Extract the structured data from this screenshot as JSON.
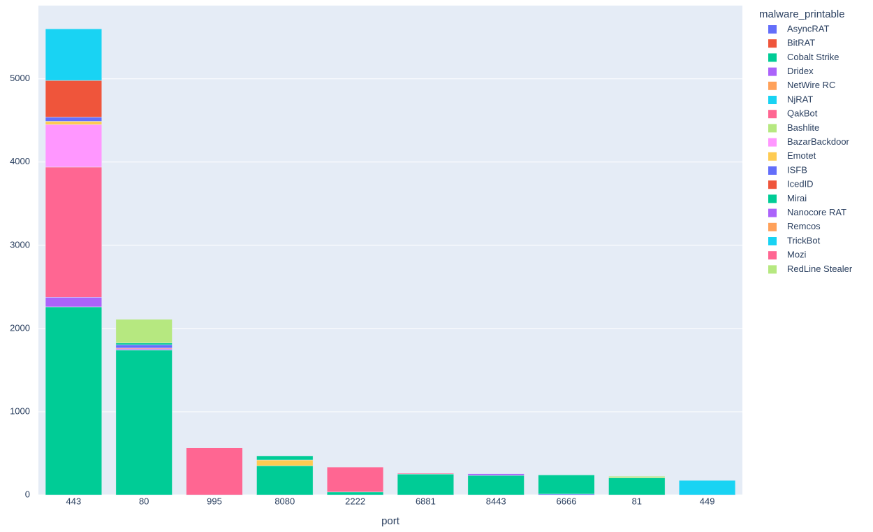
{
  "chart_data": {
    "type": "bar",
    "stacked": true,
    "x_label": "port",
    "legend_title": "malware_printable",
    "categories": [
      "443",
      "80",
      "995",
      "8080",
      "2222",
      "6881",
      "8443",
      "6666",
      "81",
      "449"
    ],
    "ylim": [
      0,
      5880
    ],
    "yticks": [
      0,
      1000,
      2000,
      3000,
      4000,
      5000
    ],
    "grid": true,
    "legend": "right",
    "series": [
      {
        "name": "AsyncRAT",
        "color": "#636efa",
        "values": [
          0,
          0,
          0,
          0,
          0,
          0,
          0,
          10,
          0,
          0
        ]
      },
      {
        "name": "BitRAT",
        "color": "#EF553B",
        "values": [
          0,
          0,
          0,
          0,
          0,
          0,
          0,
          0,
          0,
          0
        ]
      },
      {
        "name": "Cobalt Strike",
        "color": "#00cc96",
        "values": [
          2260,
          1740,
          0,
          350,
          0,
          0,
          235,
          0,
          0,
          0
        ]
      },
      {
        "name": "Dridex",
        "color": "#ab63fa",
        "values": [
          115,
          15,
          0,
          0,
          0,
          0,
          20,
          0,
          0,
          0
        ]
      },
      {
        "name": "NetWire RC",
        "color": "#FFA15A",
        "values": [
          0,
          0,
          0,
          0,
          0,
          0,
          0,
          0,
          0,
          0
        ]
      },
      {
        "name": "NjRAT",
        "color": "#19d3f3",
        "values": [
          0,
          0,
          0,
          0,
          0,
          0,
          0,
          0,
          0,
          175
        ]
      },
      {
        "name": "QakBot",
        "color": "#FF6692",
        "values": [
          1565,
          10,
          565,
          0,
          0,
          0,
          0,
          0,
          0,
          0
        ]
      },
      {
        "name": "Bashlite",
        "color": "#B6E880",
        "values": [
          0,
          0,
          0,
          0,
          0,
          0,
          0,
          0,
          0,
          0
        ]
      },
      {
        "name": "BazarBackdoor",
        "color": "#FF97FF",
        "values": [
          510,
          0,
          0,
          0,
          0,
          0,
          0,
          0,
          0,
          0
        ]
      },
      {
        "name": "Emotet",
        "color": "#FECB52",
        "values": [
          40,
          0,
          0,
          70,
          0,
          0,
          0,
          0,
          0,
          0
        ]
      },
      {
        "name": "ISFB",
        "color": "#636efa",
        "values": [
          50,
          40,
          0,
          0,
          0,
          0,
          0,
          0,
          0,
          0
        ]
      },
      {
        "name": "IcedID",
        "color": "#EF553B",
        "values": [
          440,
          0,
          0,
          0,
          0,
          0,
          0,
          0,
          0,
          0
        ]
      },
      {
        "name": "Mirai",
        "color": "#00cc96",
        "values": [
          0,
          20,
          0,
          50,
          35,
          250,
          0,
          230,
          205,
          0
        ]
      },
      {
        "name": "Nanocore RAT",
        "color": "#ab63fa",
        "values": [
          0,
          0,
          0,
          0,
          0,
          0,
          0,
          0,
          0,
          0
        ]
      },
      {
        "name": "Remcos",
        "color": "#FFA15A",
        "values": [
          0,
          0,
          0,
          0,
          0,
          0,
          0,
          0,
          0,
          0
        ]
      },
      {
        "name": "TrickBot",
        "color": "#19d3f3",
        "values": [
          620,
          0,
          0,
          0,
          0,
          0,
          0,
          0,
          0,
          0
        ]
      },
      {
        "name": "Mozi",
        "color": "#FF6692",
        "values": [
          0,
          0,
          0,
          0,
          300,
          10,
          0,
          0,
          0,
          0
        ]
      },
      {
        "name": "RedLine Stealer",
        "color": "#B6E880",
        "values": [
          0,
          285,
          0,
          0,
          0,
          0,
          0,
          0,
          20,
          0
        ]
      }
    ]
  }
}
